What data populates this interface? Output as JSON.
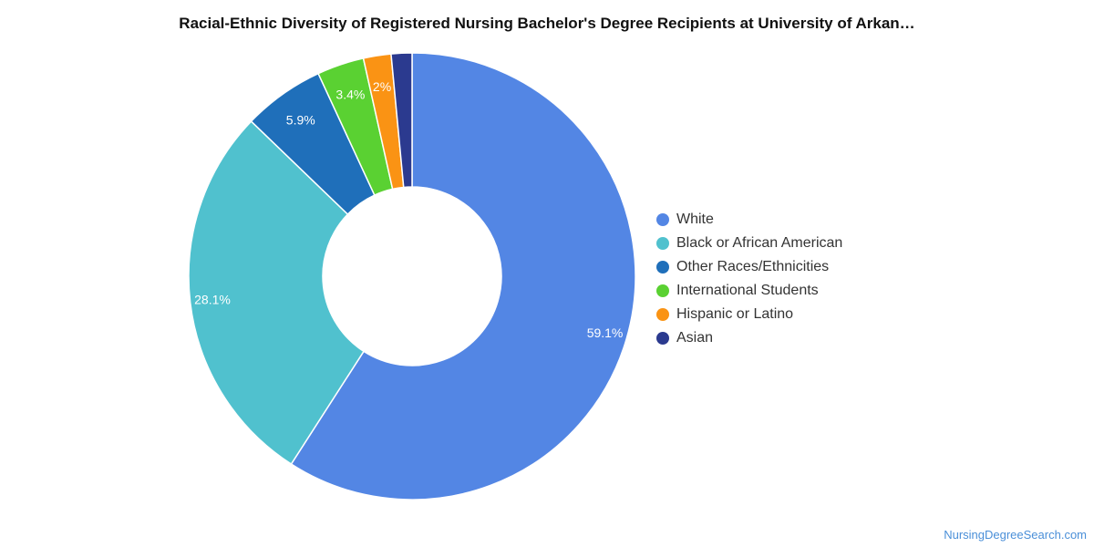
{
  "header": {
    "title": "Racial-Ethnic Diversity of Registered Nursing Bachelor's Degree Recipients at University of Arkan…"
  },
  "footer": {
    "credit": "NursingDegreeSearch.com"
  },
  "chart_data": {
    "type": "pie",
    "variant": "donut",
    "title": "Racial-Ethnic Diversity of Registered Nursing Bachelor's Degree Recipients at University of Arkan…",
    "legend_position": "right",
    "slices": [
      {
        "label": "White",
        "value": 59.1,
        "value_label": "59.1%",
        "color": "#5386e4"
      },
      {
        "label": "Black or African American",
        "value": 28.1,
        "value_label": "28.1%",
        "color": "#50c1ce"
      },
      {
        "label": "Other Races/Ethnicities",
        "value": 5.9,
        "value_label": "5.9%",
        "color": "#1f6fba"
      },
      {
        "label": "International Students",
        "value": 3.4,
        "value_label": "3.4%",
        "color": "#5ad132"
      },
      {
        "label": "Hispanic or Latino",
        "value": 2.0,
        "value_label": "2%",
        "color": "#fa9314"
      },
      {
        "label": "Asian",
        "value": 1.5,
        "value_label": "",
        "color": "#2b3a8f"
      }
    ]
  }
}
